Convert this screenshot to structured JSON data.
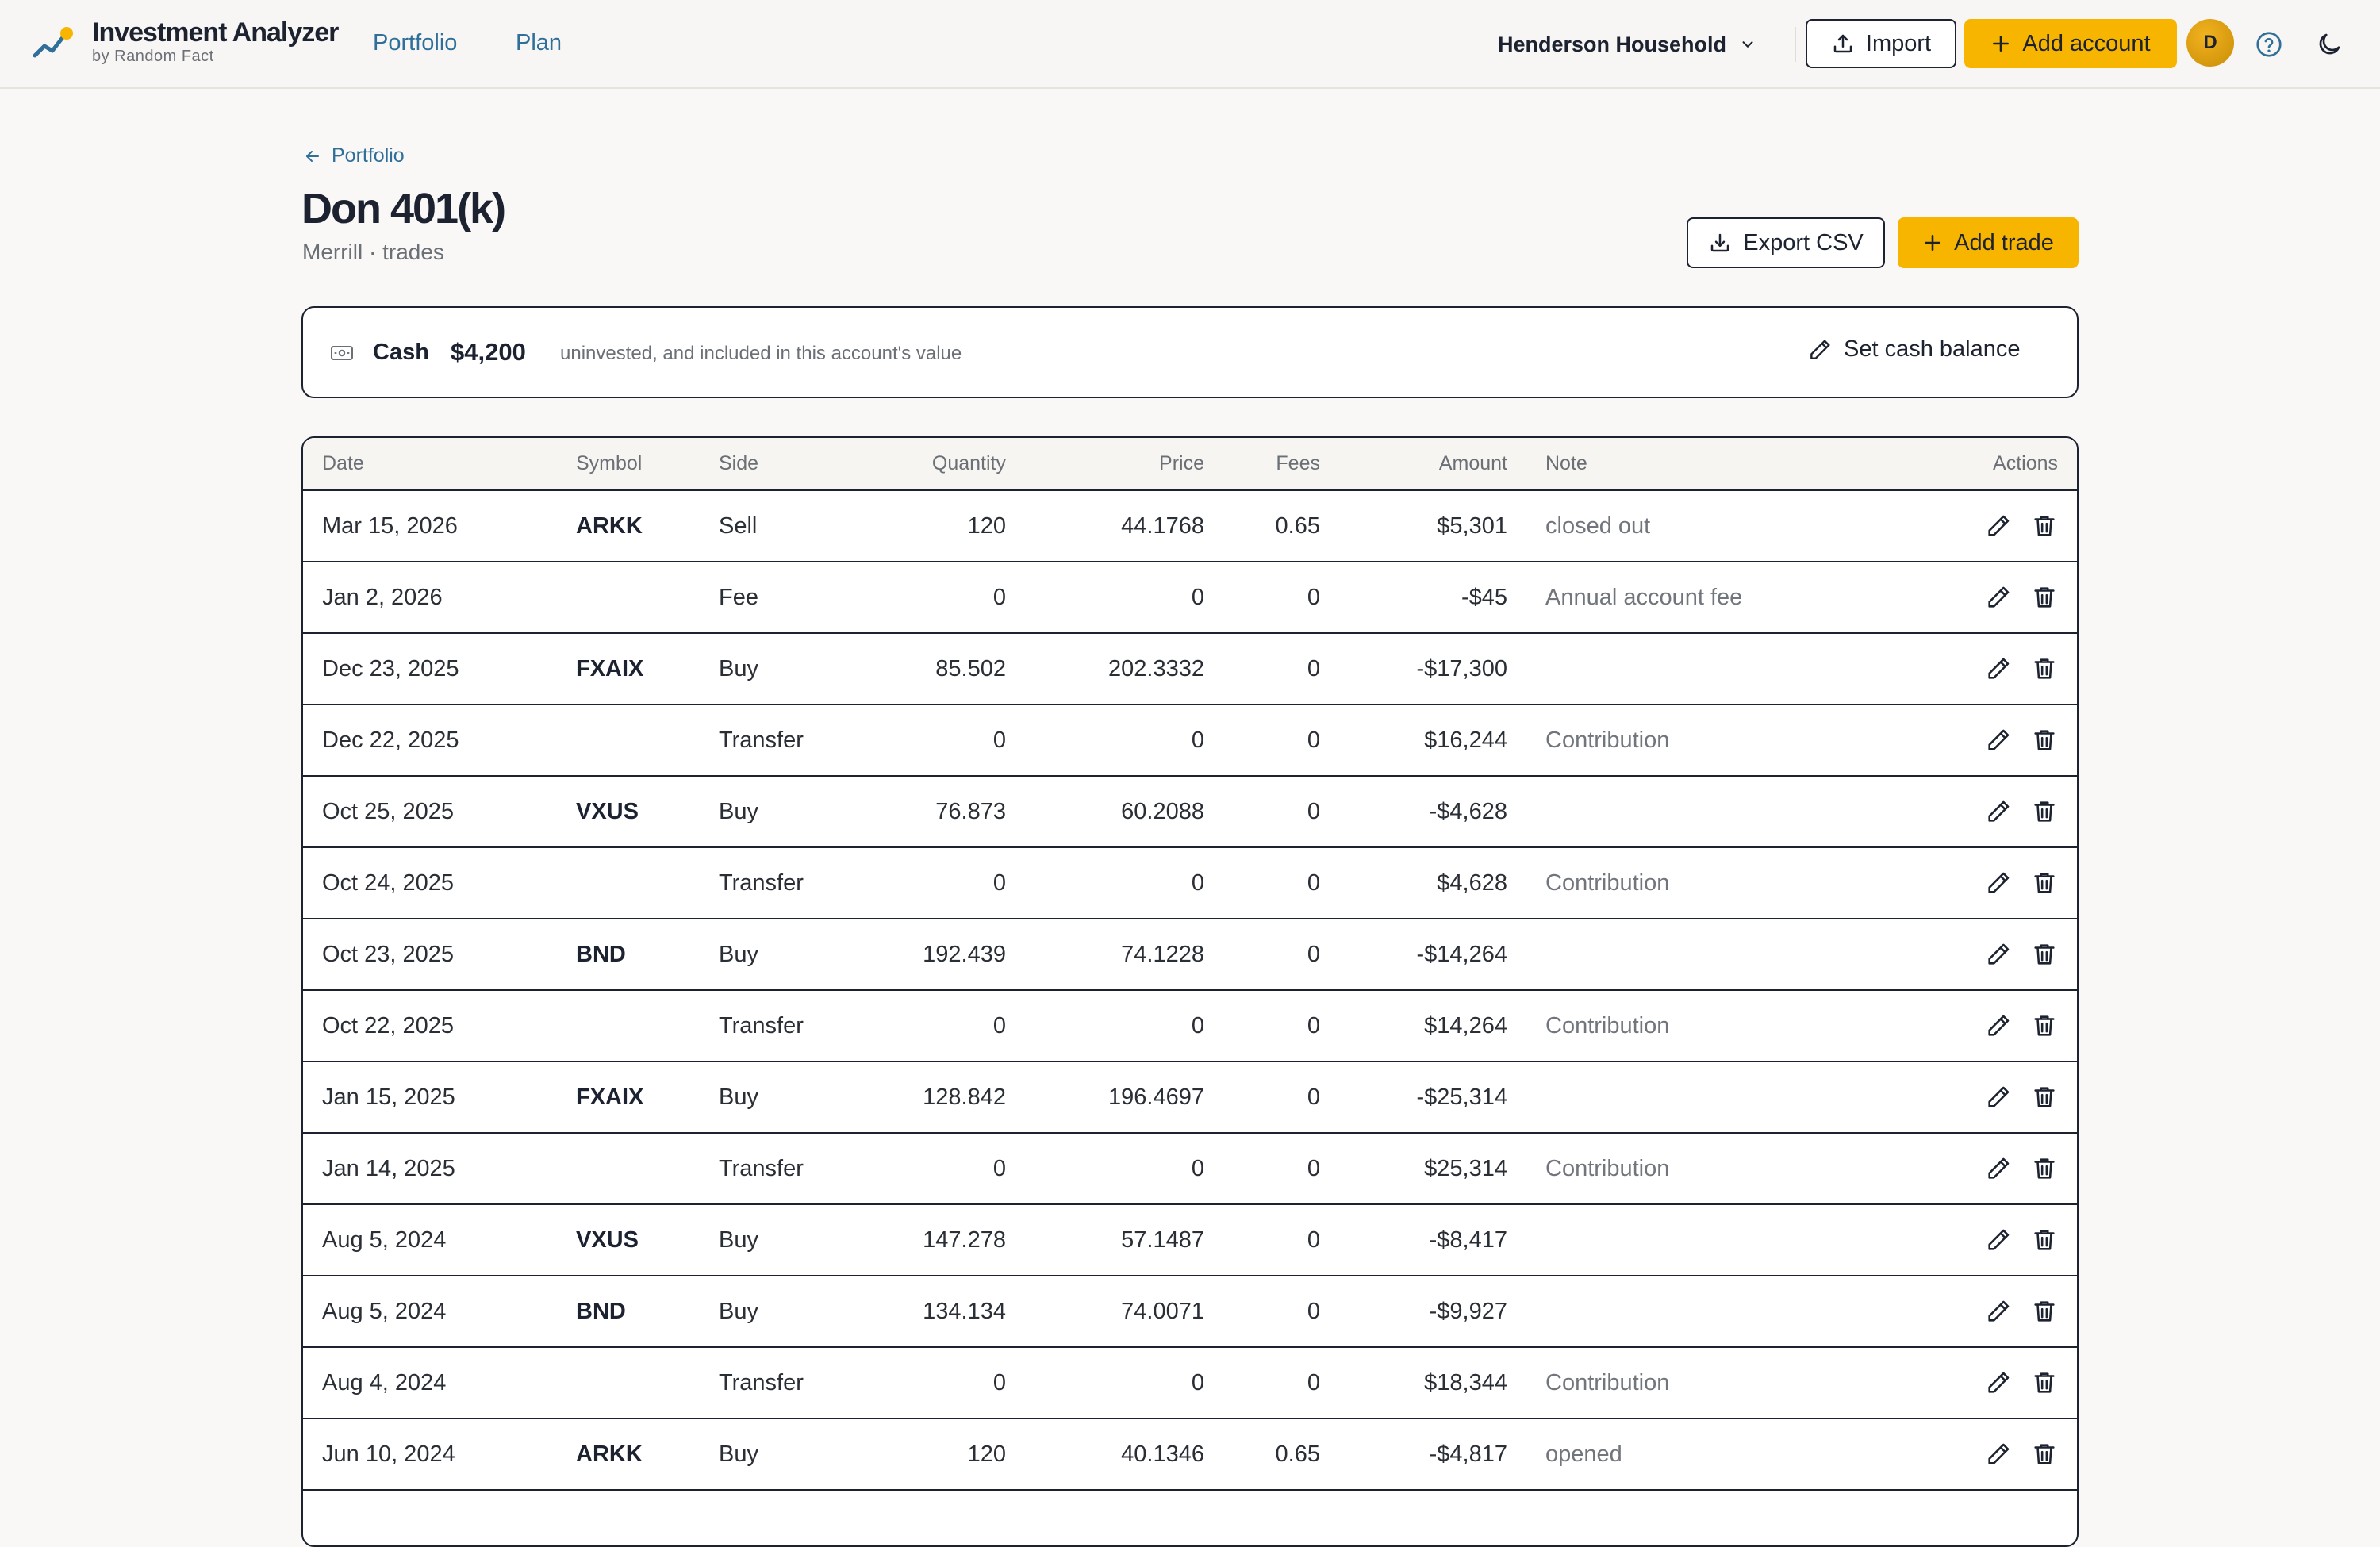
{
  "brand": {
    "name": "Investment Analyzer",
    "sub": "by Random Fact"
  },
  "nav": {
    "portfolio": "Portfolio",
    "plan": "Plan"
  },
  "household": {
    "selected": "Henderson Household"
  },
  "header_actions": {
    "import_label": "Import",
    "add_account_label": "Add account",
    "avatar_initial": "D"
  },
  "breadcrumb": {
    "back_label": "Portfolio"
  },
  "page": {
    "title": "Don 401(k)",
    "subtitle": "Merrill · trades"
  },
  "page_actions": {
    "export_label": "Export CSV",
    "add_trade_label": "Add trade"
  },
  "cash": {
    "label": "Cash",
    "value": "$4,200",
    "note": "uninvested, and included in this account's value",
    "set_label": "Set cash balance"
  },
  "table": {
    "columns": {
      "date": "Date",
      "symbol": "Symbol",
      "side": "Side",
      "quantity": "Quantity",
      "price": "Price",
      "fees": "Fees",
      "amount": "Amount",
      "note": "Note",
      "actions": "Actions"
    },
    "rows": [
      {
        "date": "Mar 15, 2026",
        "symbol": "ARKK",
        "side": "Sell",
        "quantity": "120",
        "price": "44.1768",
        "fees": "0.65",
        "amount": "$5,301",
        "note": "closed out"
      },
      {
        "date": "Jan 2, 2026",
        "symbol": "",
        "side": "Fee",
        "quantity": "0",
        "price": "0",
        "fees": "0",
        "amount": "-$45",
        "note": "Annual account fee"
      },
      {
        "date": "Dec 23, 2025",
        "symbol": "FXAIX",
        "side": "Buy",
        "quantity": "85.502",
        "price": "202.3332",
        "fees": "0",
        "amount": "-$17,300",
        "note": ""
      },
      {
        "date": "Dec 22, 2025",
        "symbol": "",
        "side": "Transfer",
        "quantity": "0",
        "price": "0",
        "fees": "0",
        "amount": "$16,244",
        "note": "Contribution"
      },
      {
        "date": "Oct 25, 2025",
        "symbol": "VXUS",
        "side": "Buy",
        "quantity": "76.873",
        "price": "60.2088",
        "fees": "0",
        "amount": "-$4,628",
        "note": ""
      },
      {
        "date": "Oct 24, 2025",
        "symbol": "",
        "side": "Transfer",
        "quantity": "0",
        "price": "0",
        "fees": "0",
        "amount": "$4,628",
        "note": "Contribution"
      },
      {
        "date": "Oct 23, 2025",
        "symbol": "BND",
        "side": "Buy",
        "quantity": "192.439",
        "price": "74.1228",
        "fees": "0",
        "amount": "-$14,264",
        "note": ""
      },
      {
        "date": "Oct 22, 2025",
        "symbol": "",
        "side": "Transfer",
        "quantity": "0",
        "price": "0",
        "fees": "0",
        "amount": "$14,264",
        "note": "Contribution"
      },
      {
        "date": "Jan 15, 2025",
        "symbol": "FXAIX",
        "side": "Buy",
        "quantity": "128.842",
        "price": "196.4697",
        "fees": "0",
        "amount": "-$25,314",
        "note": ""
      },
      {
        "date": "Jan 14, 2025",
        "symbol": "",
        "side": "Transfer",
        "quantity": "0",
        "price": "0",
        "fees": "0",
        "amount": "$25,314",
        "note": "Contribution"
      },
      {
        "date": "Aug 5, 2024",
        "symbol": "VXUS",
        "side": "Buy",
        "quantity": "147.278",
        "price": "57.1487",
        "fees": "0",
        "amount": "-$8,417",
        "note": ""
      },
      {
        "date": "Aug 5, 2024",
        "symbol": "BND",
        "side": "Buy",
        "quantity": "134.134",
        "price": "74.0071",
        "fees": "0",
        "amount": "-$9,927",
        "note": ""
      },
      {
        "date": "Aug 4, 2024",
        "symbol": "",
        "side": "Transfer",
        "quantity": "0",
        "price": "0",
        "fees": "0",
        "amount": "$18,344",
        "note": "Contribution"
      },
      {
        "date": "Jun 10, 2024",
        "symbol": "ARKK",
        "side": "Buy",
        "quantity": "120",
        "price": "40.1346",
        "fees": "0.65",
        "amount": "-$4,817",
        "note": "opened"
      }
    ]
  },
  "colors": {
    "accent": "#f7b500",
    "link": "#2f6f99",
    "text": "#1c2230",
    "muted": "#6b6f76",
    "background": "#f9f8f6"
  },
  "icons": {
    "logo": "chart-trend-logo",
    "household_dropdown": "chevron-down-icon",
    "import": "upload-icon",
    "add": "plus-icon",
    "help": "help-circle-icon",
    "theme": "moon-icon",
    "back": "arrow-left-icon",
    "export": "download-icon",
    "cash": "banknote-icon",
    "set_cash": "pencil-icon",
    "row_edit": "pencil-icon",
    "row_delete": "trash-icon"
  }
}
